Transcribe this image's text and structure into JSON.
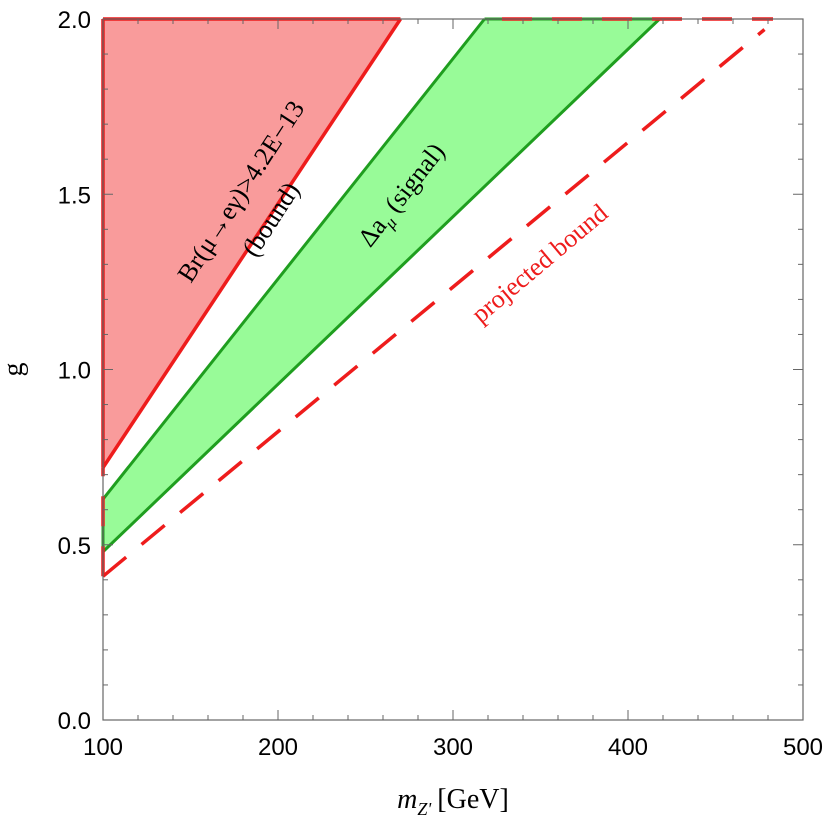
{
  "chart_data": {
    "type": "area",
    "xlabel": "m",
    "xlabel_subscript": "Z'",
    "xlabel_unit": "[GeV]",
    "ylabel": "g",
    "xlim": [
      100,
      500
    ],
    "ylim": [
      0,
      2.0
    ],
    "grid": false,
    "x_ticks": [
      100,
      200,
      300,
      400,
      500
    ],
    "x_tick_labels": [
      "100",
      "200",
      "300",
      "400",
      "500"
    ],
    "y_ticks": [
      0.0,
      0.5,
      1.0,
      1.5,
      2.0
    ],
    "y_tick_labels": [
      "0.0",
      "0.5",
      "1.0",
      "1.5",
      "2.0"
    ],
    "regions": [
      {
        "key": "bound",
        "fill": "#f99b9b",
        "stroke": "#ee1c1c",
        "boundary": [
          [
            100,
            0.72
          ],
          [
            270,
            2.0
          ]
        ],
        "label_line1": "Br(μ→eγ)>4.2E−13",
        "label_line2": "(bound)"
      },
      {
        "key": "signal",
        "fill": "#98fb98",
        "stroke": "#1f9e1f",
        "upper_boundary": [
          [
            100,
            0.63
          ],
          [
            318,
            2.0
          ]
        ],
        "lower_boundary": [
          [
            100,
            0.48
          ],
          [
            418,
            2.0
          ]
        ],
        "label_main": "Δa",
        "label_sub": "μ",
        "label_rest": " (signal)"
      }
    ],
    "dashed_line": {
      "key": "projected",
      "stroke": "#ee1c1c",
      "points": [
        [
          100,
          0.41
        ],
        [
          478,
          1.97
        ]
      ],
      "label": "projected bound"
    },
    "colors": {
      "frame": "#666666",
      "text": "#000000",
      "bound_fill": "#f99b9b",
      "bound_line": "#ee1c1c",
      "signal_fill": "#98fb98",
      "signal_line": "#1f9e1f"
    }
  }
}
